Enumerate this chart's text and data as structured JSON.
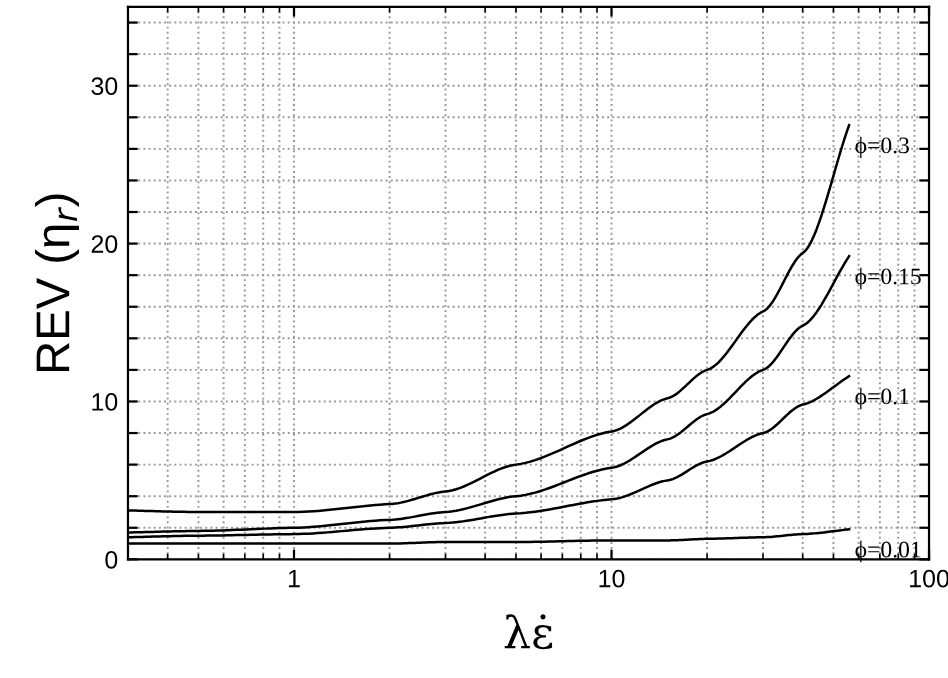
{
  "chart_data": {
    "type": "line",
    "xlabel": "λε̇",
    "ylabel": "REV (η$_{r}$)",
    "log": "x",
    "grid": true,
    "legend": "right",
    "marker": "none",
    "line_style": "solid",
    "xlim": [
      0.3,
      100
    ],
    "xticks": [
      1,
      10,
      100
    ],
    "ylim": [
      0,
      35
    ],
    "yticks": [
      0,
      {
        "value": 2,
        "label": null
      },
      {
        "value": 4,
        "label": null
      },
      {
        "value": 6,
        "label": null
      },
      {
        "value": 8,
        "label": null
      },
      10,
      {
        "value": 12,
        "label": null
      },
      {
        "value": 14,
        "label": null
      },
      {
        "value": 16,
        "label": null
      },
      {
        "value": 18,
        "label": null
      },
      20,
      {
        "value": 22,
        "label": null
      },
      {
        "value": 24,
        "label": null
      },
      {
        "value": 26,
        "label": null
      },
      {
        "value": 28,
        "label": null
      },
      30,
      {
        "value": 32,
        "label": null
      },
      {
        "value": 34,
        "label": null
      }
    ],
    "x": [
      0.3,
      0.5,
      1,
      2,
      3,
      5,
      10,
      15,
      20,
      30,
      40,
      56
    ],
    "series": [
      {
        "name": "ϕ=0.3",
        "color": "#000000",
        "values": [
          3.1,
          3.0,
          3.0,
          3.5,
          4.3,
          6.0,
          8.1,
          10.2,
          12.0,
          15.7,
          19.4,
          27.5
        ]
      },
      {
        "name": "ϕ=0.15",
        "color": "#000000",
        "values": [
          1.7,
          1.8,
          2.0,
          2.5,
          3.0,
          4.0,
          5.8,
          7.6,
          9.2,
          12.0,
          14.8,
          19.2
        ]
      },
      {
        "name": "ϕ=0.1",
        "color": "#000000",
        "values": [
          1.4,
          1.5,
          1.6,
          2.0,
          2.3,
          2.9,
          3.8,
          5.0,
          6.2,
          8.0,
          9.8,
          11.6
        ]
      },
      {
        "name": "ϕ=0.01",
        "color": "#000000",
        "values": [
          1.0,
          1.0,
          1.0,
          1.0,
          1.1,
          1.1,
          1.2,
          1.2,
          1.3,
          1.4,
          1.6,
          1.9
        ]
      }
    ]
  }
}
